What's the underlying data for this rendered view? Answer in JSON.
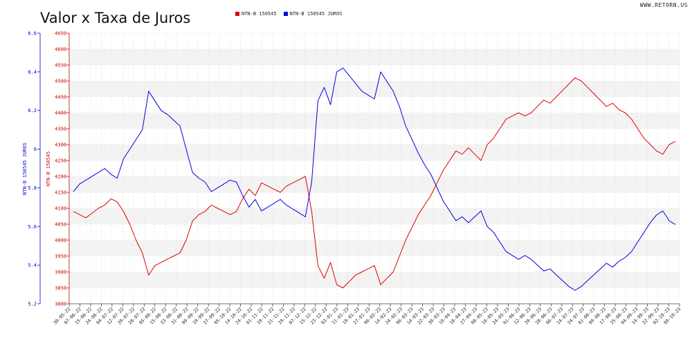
{
  "header": {
    "title": "Valor x Taxa de Juros",
    "watermark": "WWW.RETORN.US"
  },
  "chart_data": {
    "type": "line",
    "title": "Valor x Taxa de Juros",
    "grid": true,
    "legend_position": "top-center",
    "y_left_outer": {
      "label": "NTN-B 150545 JUROS",
      "range": [
        5.2,
        6.6
      ],
      "color": "#0000cc",
      "ticks": [
        5.2,
        5.4,
        5.6,
        5.8,
        6,
        6.2,
        6.4,
        6.6
      ]
    },
    "y_left_inner": {
      "label": "NTN-B 150545",
      "range": [
        3800,
        4650
      ],
      "color": "#cc0000",
      "ticks": [
        3800,
        3850,
        3900,
        3950,
        4000,
        4050,
        4100,
        4150,
        4200,
        4250,
        4300,
        4350,
        4400,
        4450,
        4500,
        4550,
        4600,
        4650
      ]
    },
    "x_tick_labels": [
      "30-05-22",
      "07-06-22",
      "15-06-22",
      "24-06-22",
      "04-07-22",
      "12-07-22",
      "20-07-22",
      "28-07-22",
      "05-08-22",
      "15-08-22",
      "23-08-22",
      "31-08-22",
      "09-09-22",
      "19-09-22",
      "27-09-22",
      "05-10-22",
      "14-10-22",
      "24-10-22",
      "01-11-22",
      "10-11-22",
      "21-11-22",
      "29-11-22",
      "07-12-22",
      "15-12-22",
      "23-12-22",
      "03-01-23",
      "11-01-23",
      "19-01-23",
      "27-01-23",
      "06-02-23",
      "14-02-23",
      "24-02-23",
      "06-03-23",
      "14-03-23",
      "22-03-23",
      "30-03-23",
      "10-04-23",
      "18-04-23",
      "27-04-23",
      "08-05-23",
      "16-05-23",
      "24-05-23",
      "01-06-23",
      "12-06-23",
      "20-06-23",
      "28-06-23",
      "06-07-23",
      "14-07-23",
      "24-07-23",
      "01-08-23",
      "09-08-23",
      "17-08-23",
      "25-08-23",
      "04-09-23",
      "14-09-23",
      "22-09-23",
      "02-10-23",
      "09-10-23"
    ],
    "series": [
      {
        "name": "NTN-B 150545",
        "axis": "inner",
        "color": "#dd0000",
        "values": [
          4090,
          4080,
          4070,
          4085,
          4100,
          4110,
          4130,
          4120,
          4090,
          4050,
          4000,
          3960,
          3890,
          3920,
          3930,
          3940,
          3950,
          3960,
          4000,
          4060,
          4080,
          4090,
          4110,
          4100,
          4090,
          4080,
          4090,
          4130,
          4160,
          4140,
          4180,
          4170,
          4160,
          4150,
          4170,
          4180,
          4190,
          4200,
          4090,
          3920,
          3880,
          3930,
          3860,
          3850,
          3870,
          3890,
          3900,
          3910,
          3920,
          3860,
          3880,
          3900,
          3950,
          4000,
          4040,
          4080,
          4110,
          4140,
          4180,
          4220,
          4250,
          4280,
          4270,
          4290,
          4270,
          4250,
          4300,
          4320,
          4350,
          4380,
          4390,
          4400,
          4390,
          4400,
          4420,
          4440,
          4430,
          4450,
          4470,
          4490,
          4510,
          4500,
          4480,
          4460,
          4440,
          4420,
          4430,
          4410,
          4400,
          4380,
          4350,
          4320,
          4300,
          4280,
          4270,
          4300,
          4310
        ]
      },
      {
        "name": "NTN-B 150545 JUROS",
        "axis": "outer",
        "color": "#0000dd",
        "values": [
          5.78,
          5.82,
          5.84,
          5.86,
          5.88,
          5.9,
          5.87,
          5.85,
          5.95,
          6.0,
          6.05,
          6.1,
          6.3,
          6.25,
          6.2,
          6.18,
          6.15,
          6.12,
          6.0,
          5.88,
          5.85,
          5.83,
          5.78,
          5.8,
          5.82,
          5.84,
          5.83,
          5.76,
          5.7,
          5.74,
          5.68,
          5.7,
          5.72,
          5.74,
          5.71,
          5.69,
          5.67,
          5.65,
          5.83,
          6.25,
          6.32,
          6.23,
          6.4,
          6.42,
          6.38,
          6.34,
          6.3,
          6.28,
          6.26,
          6.4,
          6.35,
          6.3,
          6.22,
          6.12,
          6.05,
          5.98,
          5.92,
          5.87,
          5.8,
          5.73,
          5.68,
          5.63,
          5.65,
          5.62,
          5.65,
          5.68,
          5.6,
          5.57,
          5.52,
          5.47,
          5.45,
          5.43,
          5.45,
          5.43,
          5.4,
          5.37,
          5.38,
          5.35,
          5.32,
          5.29,
          5.27,
          5.29,
          5.32,
          5.35,
          5.38,
          5.41,
          5.39,
          5.42,
          5.44,
          5.47,
          5.52,
          5.57,
          5.62,
          5.66,
          5.68,
          5.63,
          5.61
        ]
      }
    ]
  }
}
